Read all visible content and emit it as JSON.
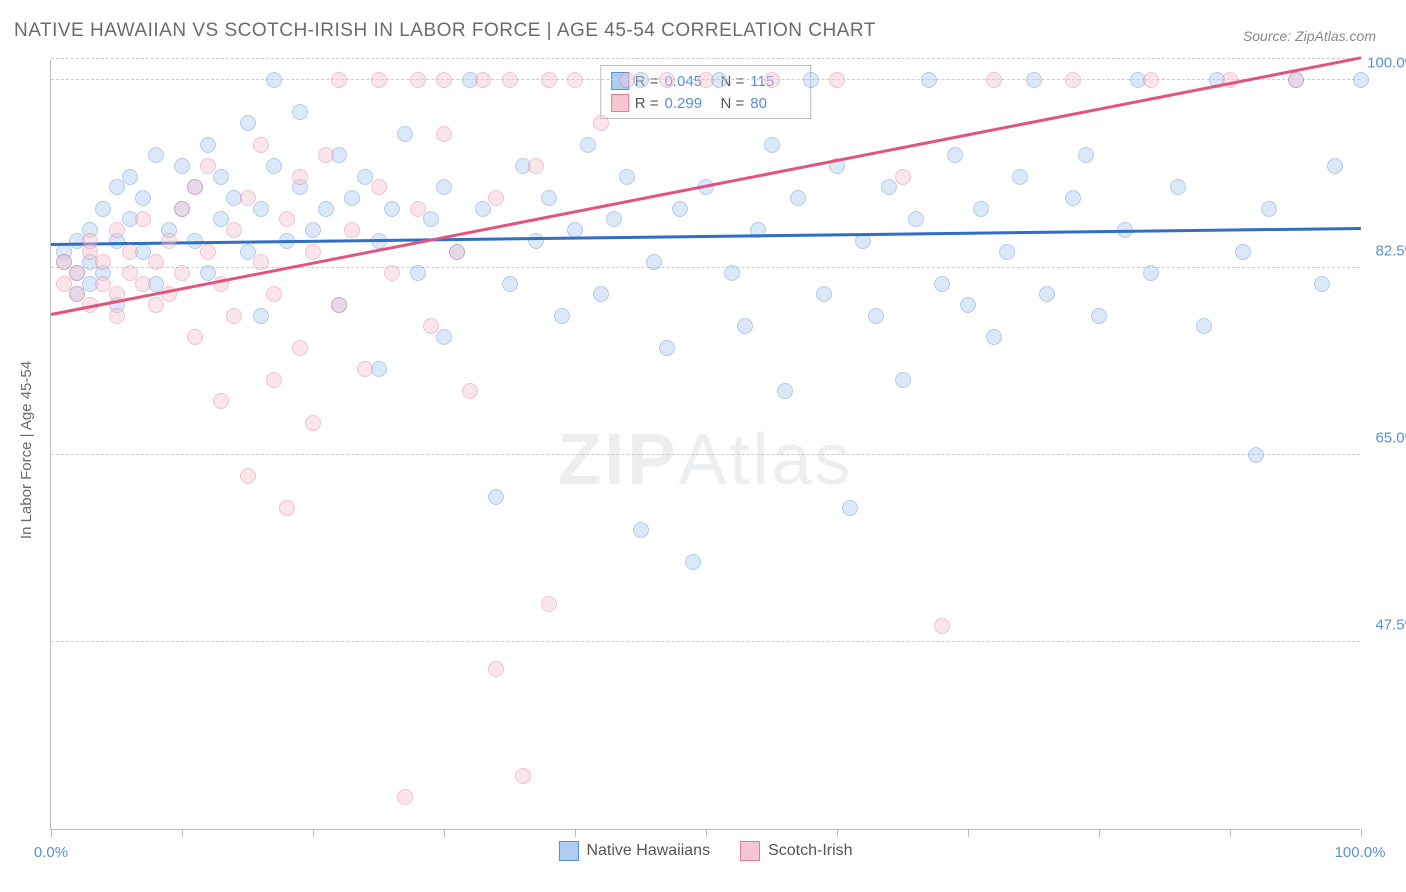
{
  "title": "NATIVE HAWAIIAN VS SCOTCH-IRISH IN LABOR FORCE | AGE 45-54 CORRELATION CHART",
  "source": "Source: ZipAtlas.com",
  "ylabel": "In Labor Force | Age 45-54",
  "watermark_bold": "ZIP",
  "watermark_light": "Atlas",
  "chart": {
    "type": "scatter",
    "xlim": [
      0,
      100
    ],
    "ylim": [
      30,
      102
    ],
    "ytick_values": [
      47.5,
      65.0,
      82.5,
      100.0
    ],
    "ytick_labels": [
      "47.5%",
      "65.0%",
      "82.5%",
      "100.0%"
    ],
    "xtick_values": [
      0,
      10,
      20,
      30,
      40,
      50,
      60,
      70,
      80,
      90,
      100
    ],
    "xtick_label_left": "0.0%",
    "xtick_label_right": "100.0%",
    "background_color": "#ffffff",
    "grid_color": "#cccccc",
    "marker_radius": 8,
    "marker_opacity": 0.45,
    "series": [
      {
        "name": "Native Hawaiians",
        "color_fill": "#aecdf0",
        "color_stroke": "#5b8fd6",
        "R_label": "R =",
        "R": "0.045",
        "N_label": "N =",
        "N": "115",
        "trend": {
          "x1": 0,
          "y1": 84.5,
          "x2": 100,
          "y2": 86.0,
          "color": "#2f6fc4",
          "width": 3
        },
        "points": [
          [
            1,
            84
          ],
          [
            1,
            83
          ],
          [
            2,
            82
          ],
          [
            2,
            85
          ],
          [
            2,
            80
          ],
          [
            3,
            83
          ],
          [
            3,
            86
          ],
          [
            3,
            81
          ],
          [
            4,
            88
          ],
          [
            4,
            82
          ],
          [
            5,
            90
          ],
          [
            5,
            85
          ],
          [
            5,
            79
          ],
          [
            6,
            91
          ],
          [
            6,
            87
          ],
          [
            7,
            89
          ],
          [
            7,
            84
          ],
          [
            8,
            93
          ],
          [
            8,
            81
          ],
          [
            9,
            86
          ],
          [
            10,
            92
          ],
          [
            10,
            88
          ],
          [
            11,
            85
          ],
          [
            11,
            90
          ],
          [
            12,
            94
          ],
          [
            12,
            82
          ],
          [
            13,
            87
          ],
          [
            13,
            91
          ],
          [
            14,
            89
          ],
          [
            15,
            96
          ],
          [
            15,
            84
          ],
          [
            16,
            88
          ],
          [
            16,
            78
          ],
          [
            17,
            92
          ],
          [
            17,
            100
          ],
          [
            18,
            85
          ],
          [
            19,
            90
          ],
          [
            19,
            97
          ],
          [
            20,
            86
          ],
          [
            21,
            88
          ],
          [
            22,
            93
          ],
          [
            22,
            79
          ],
          [
            23,
            89
          ],
          [
            24,
            91
          ],
          [
            25,
            85
          ],
          [
            25,
            73
          ],
          [
            26,
            88
          ],
          [
            27,
            95
          ],
          [
            28,
            82
          ],
          [
            29,
            87
          ],
          [
            30,
            90
          ],
          [
            30,
            76
          ],
          [
            31,
            84
          ],
          [
            32,
            100
          ],
          [
            33,
            88
          ],
          [
            34,
            61
          ],
          [
            35,
            81
          ],
          [
            36,
            92
          ],
          [
            37,
            85
          ],
          [
            38,
            89
          ],
          [
            39,
            78
          ],
          [
            40,
            86
          ],
          [
            41,
            94
          ],
          [
            42,
            80
          ],
          [
            43,
            87
          ],
          [
            44,
            91
          ],
          [
            45,
            100
          ],
          [
            45,
            58
          ],
          [
            46,
            83
          ],
          [
            47,
            75
          ],
          [
            48,
            88
          ],
          [
            49,
            55
          ],
          [
            50,
            90
          ],
          [
            51,
            100
          ],
          [
            52,
            82
          ],
          [
            53,
            77
          ],
          [
            54,
            86
          ],
          [
            55,
            94
          ],
          [
            56,
            71
          ],
          [
            57,
            89
          ],
          [
            58,
            100
          ],
          [
            59,
            80
          ],
          [
            60,
            92
          ],
          [
            61,
            60
          ],
          [
            62,
            85
          ],
          [
            63,
            78
          ],
          [
            64,
            90
          ],
          [
            65,
            72
          ],
          [
            66,
            87
          ],
          [
            67,
            100
          ],
          [
            68,
            81
          ],
          [
            69,
            93
          ],
          [
            70,
            79
          ],
          [
            71,
            88
          ],
          [
            72,
            76
          ],
          [
            73,
            84
          ],
          [
            74,
            91
          ],
          [
            75,
            100
          ],
          [
            76,
            80
          ],
          [
            78,
            89
          ],
          [
            79,
            93
          ],
          [
            80,
            78
          ],
          [
            82,
            86
          ],
          [
            83,
            100
          ],
          [
            84,
            82
          ],
          [
            86,
            90
          ],
          [
            88,
            77
          ],
          [
            89,
            100
          ],
          [
            91,
            84
          ],
          [
            92,
            65
          ],
          [
            93,
            88
          ],
          [
            95,
            100
          ],
          [
            97,
            81
          ],
          [
            98,
            92
          ],
          [
            100,
            100
          ]
        ]
      },
      {
        "name": "Scotch-Irish",
        "color_fill": "#f6c6d2",
        "color_stroke": "#e67a9a",
        "R_label": "R =",
        "R": "0.299",
        "N_label": "N =",
        "N": "80",
        "trend": {
          "x1": 0,
          "y1": 78.0,
          "x2": 100,
          "y2": 102.0,
          "color": "#e0547d",
          "width": 3
        },
        "points": [
          [
            1,
            83
          ],
          [
            1,
            81
          ],
          [
            2,
            82
          ],
          [
            2,
            80
          ],
          [
            3,
            84
          ],
          [
            3,
            79
          ],
          [
            3,
            85
          ],
          [
            4,
            81
          ],
          [
            4,
            83
          ],
          [
            5,
            80
          ],
          [
            5,
            86
          ],
          [
            5,
            78
          ],
          [
            6,
            82
          ],
          [
            6,
            84
          ],
          [
            7,
            81
          ],
          [
            7,
            87
          ],
          [
            8,
            79
          ],
          [
            8,
            83
          ],
          [
            9,
            85
          ],
          [
            9,
            80
          ],
          [
            10,
            88
          ],
          [
            10,
            82
          ],
          [
            11,
            90
          ],
          [
            11,
            76
          ],
          [
            12,
            84
          ],
          [
            12,
            92
          ],
          [
            13,
            81
          ],
          [
            13,
            70
          ],
          [
            14,
            86
          ],
          [
            14,
            78
          ],
          [
            15,
            89
          ],
          [
            15,
            63
          ],
          [
            16,
            83
          ],
          [
            16,
            94
          ],
          [
            17,
            80
          ],
          [
            17,
            72
          ],
          [
            18,
            87
          ],
          [
            18,
            60
          ],
          [
            19,
            91
          ],
          [
            19,
            75
          ],
          [
            20,
            84
          ],
          [
            20,
            68
          ],
          [
            21,
            93
          ],
          [
            22,
            79
          ],
          [
            22,
            100
          ],
          [
            23,
            86
          ],
          [
            24,
            73
          ],
          [
            25,
            90
          ],
          [
            25,
            100
          ],
          [
            26,
            82
          ],
          [
            27,
            33
          ],
          [
            28,
            88
          ],
          [
            28,
            100
          ],
          [
            29,
            77
          ],
          [
            30,
            95
          ],
          [
            30,
            100
          ],
          [
            31,
            84
          ],
          [
            32,
            71
          ],
          [
            33,
            100
          ],
          [
            34,
            89
          ],
          [
            34,
            45
          ],
          [
            35,
            100
          ],
          [
            36,
            35
          ],
          [
            37,
            92
          ],
          [
            38,
            100
          ],
          [
            38,
            51
          ],
          [
            40,
            100
          ],
          [
            42,
            96
          ],
          [
            44,
            100
          ],
          [
            47,
            100
          ],
          [
            50,
            100
          ],
          [
            55,
            100
          ],
          [
            60,
            100
          ],
          [
            65,
            91
          ],
          [
            68,
            49
          ],
          [
            72,
            100
          ],
          [
            78,
            100
          ],
          [
            84,
            100
          ],
          [
            90,
            100
          ],
          [
            95,
            100
          ]
        ]
      }
    ]
  }
}
